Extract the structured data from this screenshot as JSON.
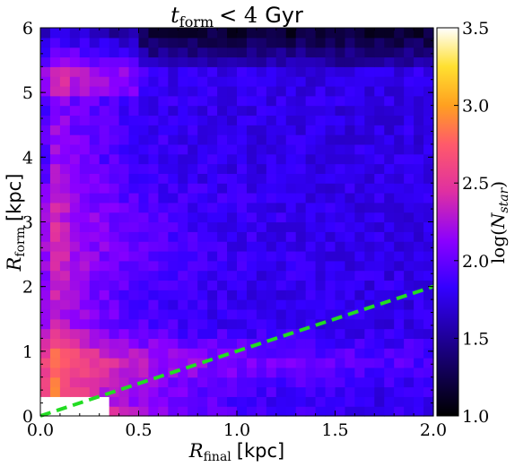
{
  "chart_data": {
    "type": "heatmap",
    "title": {
      "var": "t",
      "sub": "form",
      "relation": "< 4",
      "unit": "Gyr"
    },
    "xlabel": {
      "var": "R",
      "sub": "final",
      "unit": "[kpc]"
    },
    "ylabel": {
      "var": "R",
      "sub": "form",
      "unit": "[kpc]"
    },
    "xlim": [
      0.0,
      2.0
    ],
    "ylim": [
      0,
      6
    ],
    "xticks": [
      "0.0",
      "0.5",
      "1.0",
      "1.5",
      "2.0"
    ],
    "yticks": [
      "0",
      "1",
      "2",
      "3",
      "4",
      "5",
      "6"
    ],
    "colorbar": {
      "label": "log(N_star)",
      "label_main": "log(",
      "label_var": "N",
      "label_sub": "star",
      "label_close": ")",
      "range": [
        1.0,
        3.5
      ],
      "ticks": [
        "1.0",
        "1.5",
        "2.0",
        "2.5",
        "3.0",
        "3.5"
      ],
      "colormap": "gnuplot2",
      "colors": [
        "#000000",
        "#3300ff",
        "#a000ff",
        "#ff3e7e",
        "#ffc10f",
        "#ffff80",
        "#ffffff"
      ]
    },
    "bins": {
      "x": 40,
      "y": 40
    },
    "reference_line": {
      "style": "dashed",
      "color": "#22dd22",
      "x": [
        0.0,
        2.0
      ],
      "y": [
        0.0,
        2.0
      ]
    },
    "grid": false
  }
}
